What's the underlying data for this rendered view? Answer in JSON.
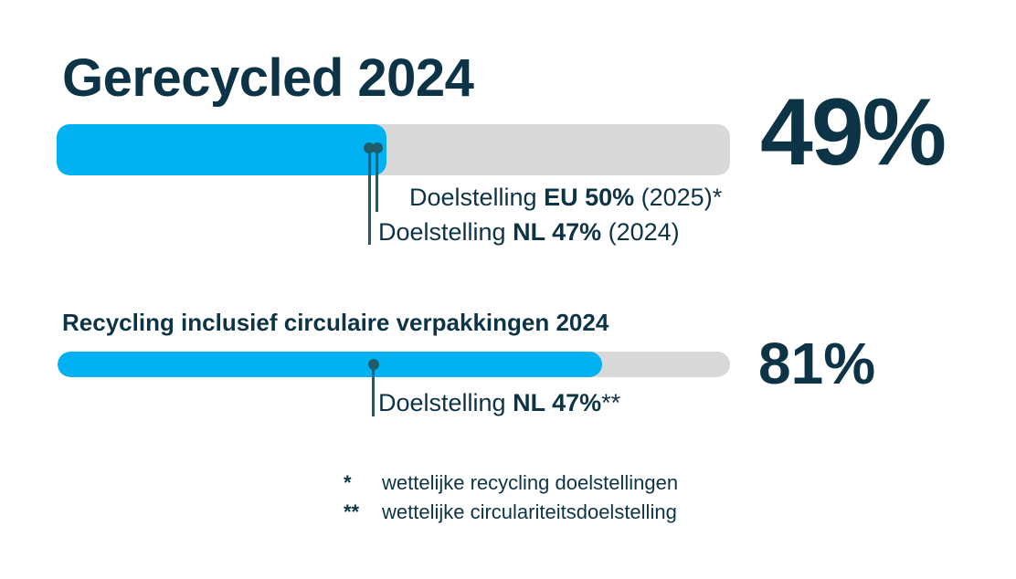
{
  "chart_data": [
    {
      "type": "bar",
      "title": "Gerecycled 2024",
      "value_label": "49%",
      "value": 49,
      "xlim": [
        0,
        100
      ],
      "bar_color": "#00b2f2",
      "track_color": "#d9d9d9",
      "targets": [
        {
          "value": 50,
          "label_pre": "Doelstelling ",
          "label_bold": "EU 50%",
          "label_post": " (2025)*"
        },
        {
          "value": 47,
          "label_pre": "Doelstelling ",
          "label_bold": "NL 47%",
          "label_post": " (2024)"
        }
      ]
    },
    {
      "type": "bar",
      "title": "Recycling inclusief circulaire verpakkingen 2024",
      "value_label": "81%",
      "value": 81,
      "xlim": [
        0,
        100
      ],
      "bar_color": "#00b2f2",
      "track_color": "#d9d9d9",
      "targets": [
        {
          "value": 47,
          "label_pre": "Doelstelling ",
          "label_bold": "NL 47%",
          "label_post": "**"
        }
      ]
    }
  ],
  "footnotes": [
    {
      "mark": "*",
      "text": "wettelijke recycling doelstellingen"
    },
    {
      "mark": "**",
      "text": "wettelijke circulariteitsdoelstelling"
    }
  ],
  "colors": {
    "text": "#0d3446",
    "marker": "#1f5c6b"
  }
}
